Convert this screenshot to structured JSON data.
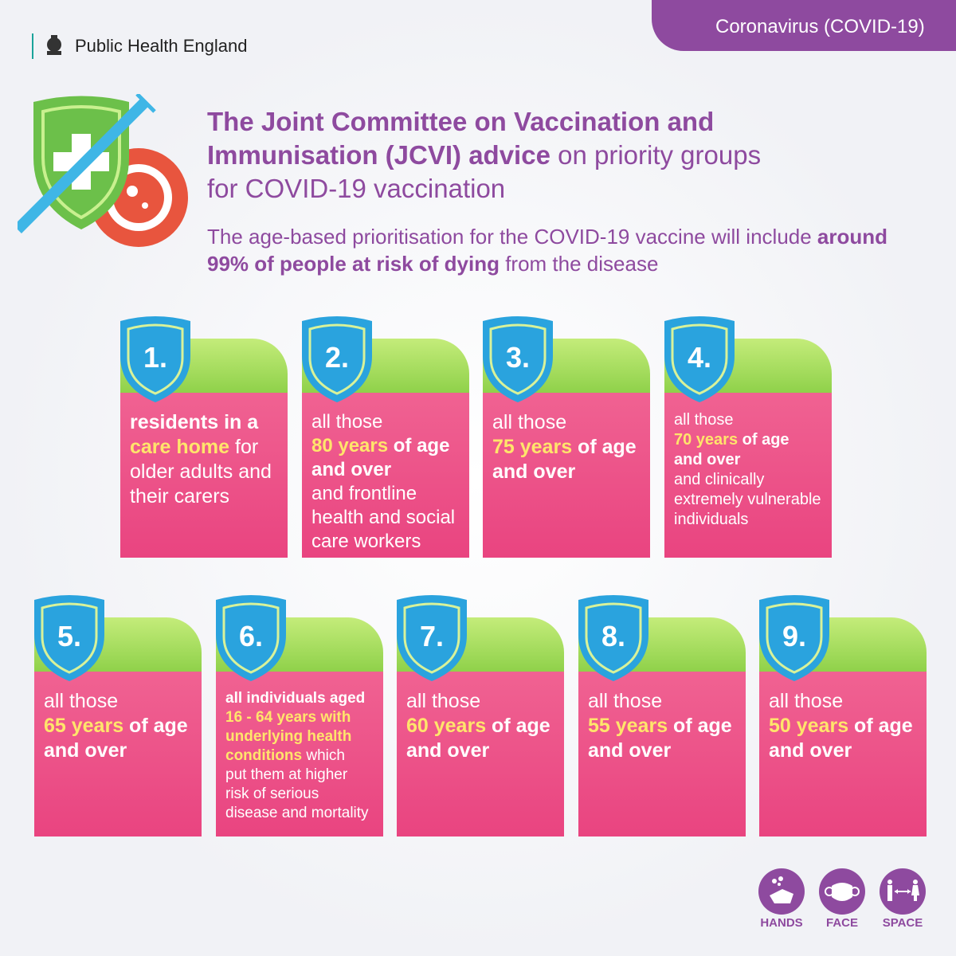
{
  "header": {
    "organisation": "Public Health England",
    "tag": "Coronavirus (COVID-19)"
  },
  "title": {
    "bold": "The Joint Committee on Vaccination and Immunisation (JCVI) advice",
    "rest": " on priority groups for COVID-19 vaccination"
  },
  "subtitle": {
    "part1": "The age-based prioritisation for the COVID-19 vaccine will include ",
    "bold": "around 99% of people at risk of dying",
    "part2": " from the disease"
  },
  "colors": {
    "purple": "#8e4a9f",
    "pink": "#ec4f87",
    "green": "#a6dd5e",
    "shield": "#2aa3de",
    "highlight": "#ffe56b"
  },
  "cards": [
    {
      "number": "1.",
      "size": 25,
      "lines": [
        [
          {
            "t": "residents in a",
            "s": "b"
          }
        ],
        [
          {
            "t": "care home",
            "s": "y"
          },
          {
            "t": " for",
            "s": "n"
          }
        ],
        [
          {
            "t": "older adults and",
            "s": "n"
          }
        ],
        [
          {
            "t": "their carers",
            "s": "n"
          }
        ]
      ]
    },
    {
      "number": "2.",
      "size": 24,
      "lines": [
        [
          {
            "t": "all those",
            "s": "n"
          }
        ],
        [
          {
            "t": "80 years",
            "s": "y"
          },
          {
            "t": " of age",
            "s": "b"
          }
        ],
        [
          {
            "t": "and over",
            "s": "b"
          }
        ],
        [
          {
            "t": "and frontline",
            "s": "n"
          }
        ],
        [
          {
            "t": "health and social",
            "s": "n"
          }
        ],
        [
          {
            "t": "care workers",
            "s": "n"
          }
        ]
      ]
    },
    {
      "number": "3.",
      "size": 25,
      "lines": [
        [
          {
            "t": "all those",
            "s": "n"
          }
        ],
        [
          {
            "t": "75 years",
            "s": "y"
          },
          {
            "t": " of age",
            "s": "b"
          }
        ],
        [
          {
            "t": "and over",
            "s": "b"
          }
        ]
      ]
    },
    {
      "number": "4.",
      "size": 20,
      "lines": [
        [
          {
            "t": "all those",
            "s": "n"
          }
        ],
        [
          {
            "t": "70 years",
            "s": "y"
          },
          {
            "t": " of age",
            "s": "b"
          }
        ],
        [
          {
            "t": "and over",
            "s": "b"
          }
        ],
        [
          {
            "t": "and clinically",
            "s": "n"
          }
        ],
        [
          {
            "t": "extremely vulnerable",
            "s": "n"
          }
        ],
        [
          {
            "t": "individuals",
            "s": "n"
          }
        ]
      ]
    },
    {
      "number": "5.",
      "size": 25,
      "lines": [
        [
          {
            "t": "all those",
            "s": "n"
          }
        ],
        [
          {
            "t": "65 years",
            "s": "y"
          },
          {
            "t": " of age",
            "s": "b"
          }
        ],
        [
          {
            "t": "and over",
            "s": "b"
          }
        ]
      ]
    },
    {
      "number": "6.",
      "size": 19,
      "lines": [
        [
          {
            "t": "all individuals aged",
            "s": "b"
          }
        ],
        [
          {
            "t": "16 - 64 years with",
            "s": "y"
          }
        ],
        [
          {
            "t": "underlying health",
            "s": "y"
          }
        ],
        [
          {
            "t": "conditions",
            "s": "y"
          },
          {
            "t": " which",
            "s": "n"
          }
        ],
        [
          {
            "t": "put them at higher",
            "s": "n"
          }
        ],
        [
          {
            "t": "risk of serious",
            "s": "n"
          }
        ],
        [
          {
            "t": "disease and mortality",
            "s": "n"
          }
        ]
      ]
    },
    {
      "number": "7.",
      "size": 25,
      "lines": [
        [
          {
            "t": "all those",
            "s": "n"
          }
        ],
        [
          {
            "t": "60 years",
            "s": "y"
          },
          {
            "t": " of age",
            "s": "b"
          }
        ],
        [
          {
            "t": "and over",
            "s": "b"
          }
        ]
      ]
    },
    {
      "number": "8.",
      "size": 25,
      "lines": [
        [
          {
            "t": "all those",
            "s": "n"
          }
        ],
        [
          {
            "t": "55 years",
            "s": "y"
          },
          {
            "t": " of age",
            "s": "b"
          }
        ],
        [
          {
            "t": "and over",
            "s": "b"
          }
        ]
      ]
    },
    {
      "number": "9.",
      "size": 25,
      "lines": [
        [
          {
            "t": "all those",
            "s": "n"
          }
        ],
        [
          {
            "t": "50 years",
            "s": "y"
          },
          {
            "t": " of age",
            "s": "b"
          }
        ],
        [
          {
            "t": "and over",
            "s": "b"
          }
        ]
      ]
    }
  ],
  "footer_icons": [
    {
      "label": "HANDS",
      "icon": "hand-washing-icon"
    },
    {
      "label": "FACE",
      "icon": "face-mask-icon"
    },
    {
      "label": "SPACE",
      "icon": "social-distance-icon"
    }
  ]
}
